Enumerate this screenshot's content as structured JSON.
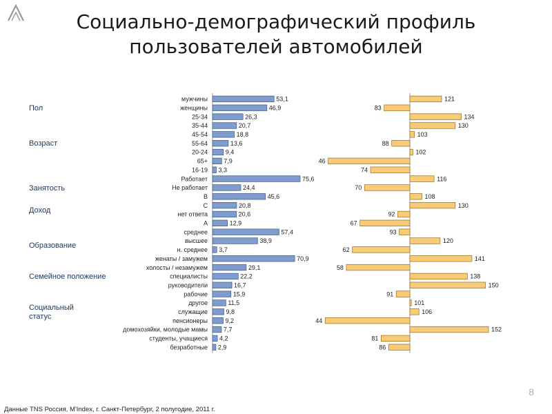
{
  "title": [
    "Социально-демографический профиль",
    "пользователей автомобилей"
  ],
  "page_number": "8",
  "source": "Данные TNS Россия, M'Index, г. Санкт-Петербург, 2 полугодие, 2011 г.",
  "categories": [
    {
      "label": "Пол",
      "row": 1
    },
    {
      "label": "Возраст",
      "row": 5
    },
    {
      "label": "Занятость",
      "row": 10
    },
    {
      "label": "Доход",
      "row": 12.5
    },
    {
      "label": "Образование",
      "row": 16.5
    },
    {
      "label": "Семейное  положение",
      "row": 20
    },
    {
      "label": "Социальный статус",
      "row": 23.5
    }
  ],
  "colors": {
    "left_bar": "#7f9ccc",
    "left_bar_stroke": "#3a5a8c",
    "right_bar": "#f8cb78",
    "right_bar_stroke": "#9b6a1a",
    "category_text": "#17375e"
  },
  "chart_data": [
    {
      "type": "bar",
      "orientation": "horizontal",
      "name": "share_percent",
      "categories": [
        "мужчины",
        "женщины",
        "25-34",
        "35-44",
        "45-54",
        "55-64",
        "20-24",
        "65+",
        "16-19",
        "Работает",
        "Не работает",
        "B",
        "C",
        "нет ответа",
        "A",
        "среднее",
        "высшее",
        "н. среднее",
        "женаты / замужем",
        "холосты / незамужем",
        "специалисты",
        "руководители",
        "рабочие",
        "другое",
        "служащие",
        "пенсионеры",
        "домохозяйки, молодые мамы",
        "студенты, учащиеся",
        "безработные"
      ],
      "values": [
        53.1,
        46.9,
        26.3,
        20.7,
        18.8,
        13.6,
        9.4,
        7.9,
        3.3,
        75.6,
        24.4,
        45.6,
        20.8,
        20.6,
        12.9,
        57.4,
        38.9,
        3.7,
        70.9,
        29.1,
        22.2,
        16.7,
        15.9,
        11.5,
        9.8,
        9.2,
        7.7,
        4.2,
        2.9
      ],
      "value_labels": [
        "53,1",
        "46,9",
        "26,3",
        "20,7",
        "18,8",
        "13,6",
        "9,4",
        "7,9",
        "3,3",
        "75,6",
        "24,4",
        "45,6",
        "20,8",
        "20,6",
        "12,9",
        "57,4",
        "38,9",
        "3,7",
        "70,9",
        "29,1",
        "22,2",
        "16,7",
        "15,9",
        "11,5",
        "9,8",
        "9,2",
        "7,7",
        "4,2",
        "2,9"
      ],
      "xlim": [
        0,
        80
      ]
    },
    {
      "type": "bar",
      "orientation": "horizontal",
      "name": "affinity_index",
      "baseline": 100,
      "values": [
        121,
        83,
        134,
        130,
        103,
        88,
        102,
        46,
        74,
        116,
        70,
        108,
        130,
        92,
        67,
        93,
        120,
        62,
        141,
        58,
        138,
        150,
        91,
        101,
        106,
        44,
        152,
        81,
        86
      ],
      "xlim": [
        40,
        160
      ]
    }
  ]
}
